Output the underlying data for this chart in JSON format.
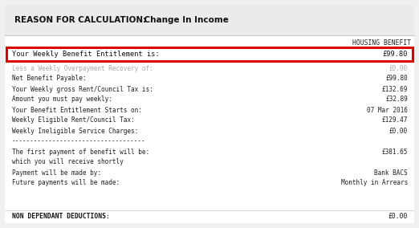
{
  "background_color": "#f0f0f0",
  "content_bg": "#ffffff",
  "header_label": "REASON FOR CALCULATION:",
  "header_value": "    Change In Income",
  "column_header": "HOUSING BENEFIT",
  "highlighted_label": "Your Weekly Benefit Entitlement is:",
  "highlighted_value": "£99.80",
  "highlight_box_color": "#dd0000",
  "rows": [
    {
      "label": "Less a Weekly Overpayment Recovery of:",
      "value": "£0.00",
      "faded": true
    },
    {
      "label": "Net Benefit Payable:",
      "value": "£99.80",
      "faded": false
    },
    {
      "label": "Your Weekly gross Rent/Council Tax is:",
      "value": "£132.69",
      "faded": false
    },
    {
      "label": "Amount you must pay weekly:",
      "value": "£32.89",
      "faded": false
    },
    {
      "label": "Your Benefit Entitlement Starts on:",
      "value": "07 Mar 2016",
      "faded": false
    },
    {
      "label": "Weekly Eligible Rent/Council Tax:",
      "value": "£129.47",
      "faded": false
    },
    {
      "label": "Weekly Ineligible Service Charges:",
      "value": "£0.00",
      "faded": false
    },
    {
      "label": "------------------------------------",
      "value": "",
      "faded": false
    },
    {
      "label": "The first payment of benefit will be:",
      "value": "£381.65",
      "faded": false
    },
    {
      "label": "which you will receive shortly",
      "value": "",
      "faded": false
    },
    {
      "label": "Payment will be made by:",
      "value": "Bank BACS",
      "faded": false
    },
    {
      "label": "Future payments will be made:",
      "value": "Monthly in Arrears",
      "faded": false
    }
  ],
  "footer_label": "NON DEPENDANT DEDUCTIONS:",
  "footer_value": "£0.00",
  "mono_font": "monospace",
  "sans_font": "sans-serif",
  "fig_width": 5.22,
  "fig_height": 2.84,
  "dpi": 100
}
